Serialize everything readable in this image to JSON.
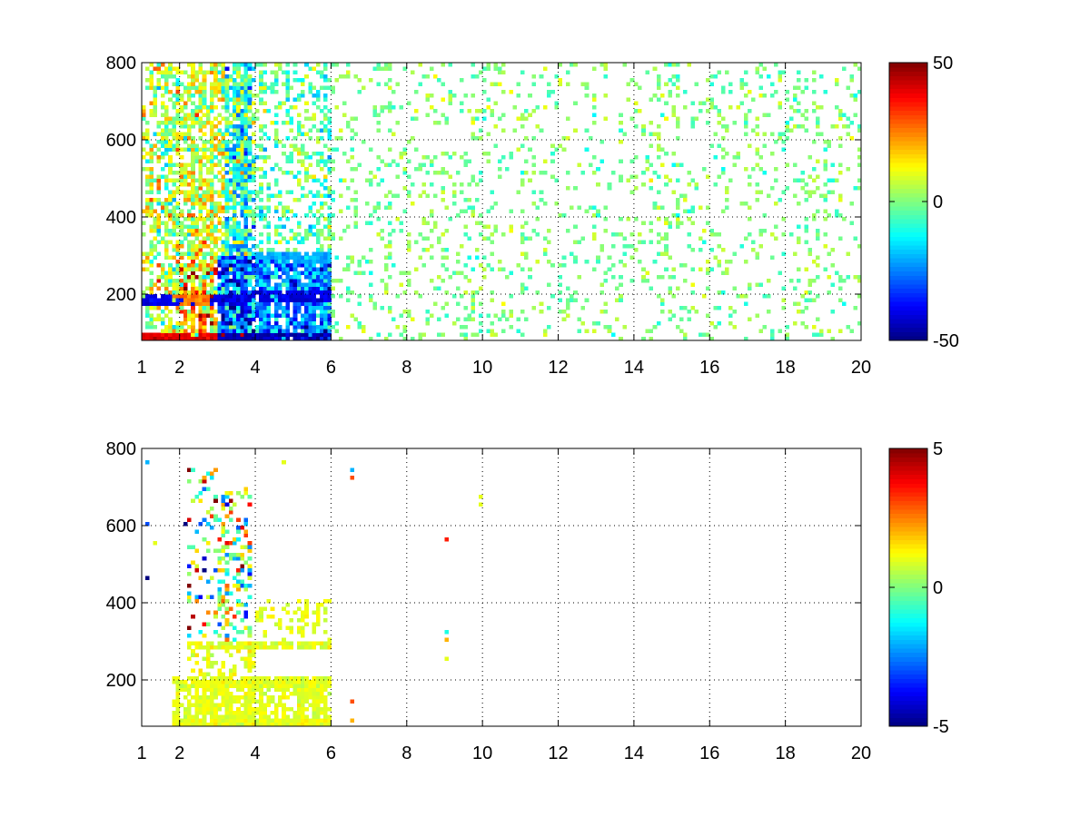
{
  "chart_data": [
    {
      "type": "heatmap",
      "title": "",
      "xlabel": "",
      "ylabel": "",
      "xlim": [
        1,
        20
      ],
      "ylim": [
        80,
        800
      ],
      "grid": true,
      "colormap": "jet",
      "x_ticks": [
        1,
        2,
        4,
        6,
        8,
        10,
        12,
        14,
        16,
        18,
        20
      ],
      "x_tick_labels": [
        "1",
        "2",
        "4",
        "6",
        "8",
        "10",
        "12",
        "14",
        "16",
        "18",
        "20"
      ],
      "y_ticks": [
        200,
        400,
        600,
        800
      ],
      "y_tick_labels": [
        "200",
        "400",
        "600",
        "800"
      ],
      "colorbar": {
        "min": -50,
        "max": 50,
        "ticks": [
          50,
          0,
          -50
        ],
        "tick_labels": [
          "50",
          "0",
          "-50"
        ]
      },
      "regions": [
        {
          "x": [
            1.0,
            2.0
          ],
          "y": [
            80,
            800
          ],
          "density": 0.55,
          "mean": 5,
          "spread": 12
        },
        {
          "x": [
            2.0,
            3.2
          ],
          "y": [
            300,
            800
          ],
          "density": 0.7,
          "mean": 8,
          "spread": 10
        },
        {
          "x": [
            3.2,
            4.0
          ],
          "y": [
            300,
            800
          ],
          "density": 0.75,
          "mean": -8,
          "spread": 12
        },
        {
          "x": [
            2.0,
            3.0
          ],
          "y": [
            80,
            300
          ],
          "density": 0.85,
          "mean": 15,
          "spread": 15
        },
        {
          "x": [
            3.0,
            4.0
          ],
          "y": [
            80,
            300
          ],
          "density": 0.9,
          "mean": -25,
          "spread": 15
        },
        {
          "x": [
            4.0,
            6.0
          ],
          "y": [
            80,
            300
          ],
          "density": 0.85,
          "mean": -25,
          "spread": 10
        },
        {
          "x": [
            4.0,
            6.0
          ],
          "y": [
            300,
            800
          ],
          "density": 0.35,
          "mean": -4,
          "spread": 8
        },
        {
          "x": [
            6.0,
            20.0
          ],
          "y": [
            80,
            800
          ],
          "density": 0.14,
          "mean": 0,
          "spread": 5
        }
      ],
      "bands": [
        {
          "x": [
            1.0,
            4.0
          ],
          "y": [
            170,
            200
          ],
          "value": -40
        },
        {
          "x": [
            1.8,
            2.8
          ],
          "y": [
            170,
            200
          ],
          "value": 25
        },
        {
          "x": [
            1.0,
            4.0
          ],
          "y": [
            80,
            100
          ],
          "value": 40
        },
        {
          "x": [
            3.0,
            6.0
          ],
          "y": [
            80,
            100
          ],
          "value": -45
        },
        {
          "x": [
            4.0,
            6.0
          ],
          "y": [
            180,
            210
          ],
          "value": -40
        },
        {
          "x": [
            4.0,
            6.0
          ],
          "y": [
            280,
            310
          ],
          "value": -20
        }
      ]
    },
    {
      "type": "heatmap",
      "title": "",
      "xlabel": "",
      "ylabel": "",
      "xlim": [
        1,
        20
      ],
      "ylim": [
        80,
        800
      ],
      "grid": true,
      "colormap": "jet",
      "x_ticks": [
        1,
        2,
        4,
        6,
        8,
        10,
        12,
        14,
        16,
        18,
        20
      ],
      "x_tick_labels": [
        "1",
        "2",
        "4",
        "6",
        "8",
        "10",
        "12",
        "14",
        "16",
        "18",
        "20"
      ],
      "y_ticks": [
        200,
        400,
        600,
        800
      ],
      "y_tick_labels": [
        "200",
        "400",
        "600",
        "800"
      ],
      "colorbar": {
        "min": -5,
        "max": 5,
        "ticks": [
          5,
          0,
          -5
        ],
        "tick_labels": [
          "5",
          "0",
          "-5"
        ]
      },
      "regions": [
        {
          "x": [
            1.8,
            6.0
          ],
          "y": [
            80,
            210
          ],
          "density": 0.7,
          "mean": 1,
          "spread": 0.2
        },
        {
          "x": [
            2.2,
            4.0
          ],
          "y": [
            210,
            300
          ],
          "density": 0.35,
          "mean": 1,
          "spread": 0.3
        },
        {
          "x": [
            2.2,
            3.0
          ],
          "y": [
            300,
            750
          ],
          "density": 0.18,
          "mean": 0,
          "spread": 2.5
        },
        {
          "x": [
            3.0,
            3.9
          ],
          "y": [
            300,
            700
          ],
          "density": 0.35,
          "mean": 0,
          "spread": 2
        },
        {
          "x": [
            4.0,
            6.0
          ],
          "y": [
            280,
            410
          ],
          "density": 0.3,
          "mean": 1,
          "spread": 0.2
        }
      ],
      "bands": [
        {
          "x": [
            1.8,
            6.0
          ],
          "y": [
            80,
            100
          ],
          "value": 1
        },
        {
          "x": [
            2.0,
            6.0
          ],
          "y": [
            180,
            205
          ],
          "value": 1
        },
        {
          "x": [
            2.2,
            6.0
          ],
          "y": [
            280,
            300
          ],
          "value": 1
        }
      ],
      "points": [
        {
          "x": 9.05,
          "y": 560,
          "value": 3.5
        },
        {
          "x": 6.6,
          "y": 740,
          "value": -2
        },
        {
          "x": 6.6,
          "y": 720,
          "value": 3
        },
        {
          "x": 9.0,
          "y": 320,
          "value": -1
        },
        {
          "x": 9.0,
          "y": 300,
          "value": 2
        },
        {
          "x": 9.0,
          "y": 250,
          "value": 1
        },
        {
          "x": 6.5,
          "y": 140,
          "value": 3
        },
        {
          "x": 6.6,
          "y": 95,
          "value": 2
        },
        {
          "x": 4.7,
          "y": 760,
          "value": 1
        },
        {
          "x": 1.1,
          "y": 460,
          "value": -5
        },
        {
          "x": 1.1,
          "y": 600,
          "value": -3
        },
        {
          "x": 1.1,
          "y": 760,
          "value": -2
        },
        {
          "x": 1.3,
          "y": 550,
          "value": 1
        },
        {
          "x": 2.3,
          "y": 740,
          "value": 5
        },
        {
          "x": 2.3,
          "y": 440,
          "value": 5
        },
        {
          "x": 2.1,
          "y": 600,
          "value": -5
        },
        {
          "x": 2.9,
          "y": 660,
          "value": 5
        },
        {
          "x": 2.7,
          "y": 730,
          "value": -1
        },
        {
          "x": 9.9,
          "y": 670,
          "value": 1
        },
        {
          "x": 9.9,
          "y": 650,
          "value": 1
        }
      ]
    }
  ]
}
